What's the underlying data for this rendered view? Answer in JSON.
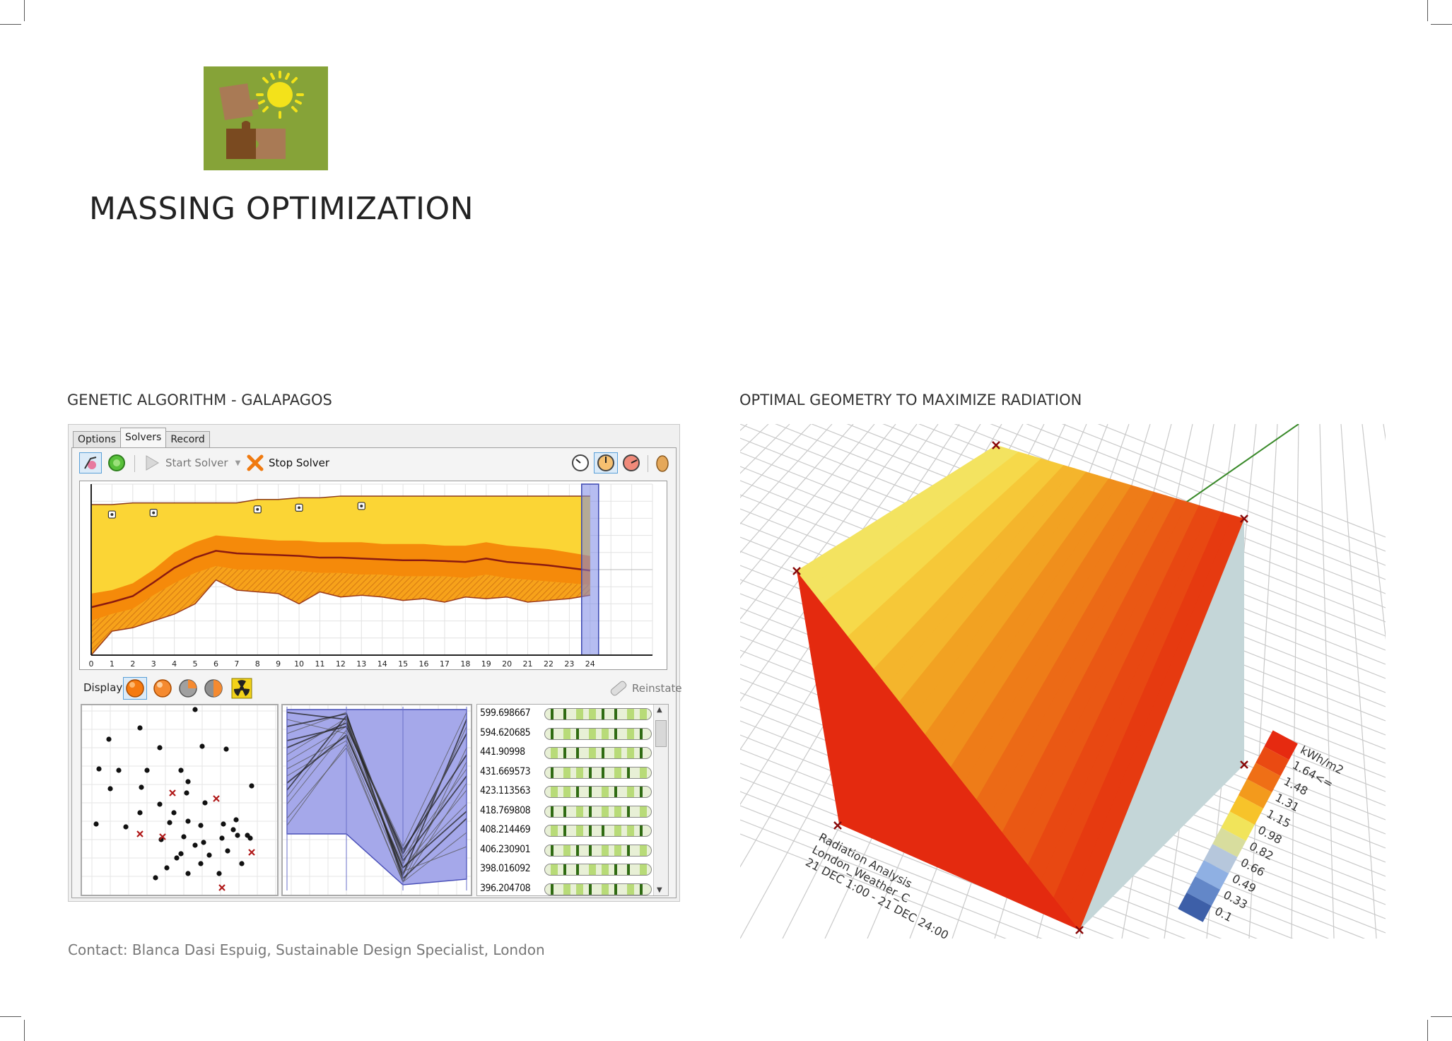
{
  "page": {
    "title": "MASSING OPTIMIZATION",
    "left_section": "GENETIC ALGORITHM - GALAPAGOS",
    "right_section": "OPTIMAL GEOMETRY TO MAXIMIZE RADIATION",
    "contact": "Contact: Blanca Dasi Espuig, Sustainable Design Specialist, London"
  },
  "galapagos": {
    "tabs": [
      {
        "label": "Options",
        "active": false
      },
      {
        "label": "Solvers",
        "active": true
      },
      {
        "label": "Record",
        "active": false
      }
    ],
    "toolbar": {
      "start_label": "Start Solver",
      "stop_label": "Stop Solver",
      "icons": [
        "evolutionary-solver-icon",
        "annealing-solver-icon",
        "play-icon",
        "stop-x-icon",
        "speed-slow-icon",
        "speed-medium-icon",
        "speed-fast-icon",
        "egg-icon"
      ]
    },
    "display": {
      "label": "Display",
      "reinstate_label": "Reinstate",
      "icons": [
        "display-orange-icon",
        "display-orange2-icon",
        "display-gray-icon",
        "display-mixed-icon",
        "radiation-icon"
      ]
    },
    "fitness_values": [
      "599.698667",
      "594.620685",
      "441.90998",
      "431.669573",
      "423.113563",
      "418.769808",
      "408.214469",
      "406.230901",
      "398.016092",
      "396.204708"
    ]
  },
  "chart_data": {
    "type": "area",
    "x": [
      0,
      1,
      2,
      3,
      4,
      5,
      6,
      7,
      8,
      9,
      10,
      11,
      12,
      13,
      14,
      15,
      16,
      17,
      18,
      19,
      20,
      21,
      22,
      23,
      24
    ],
    "tick_labels": [
      "0",
      "1",
      "2",
      "3",
      "4",
      "5",
      "6",
      "7",
      "8",
      "9",
      "10",
      "11",
      "12",
      "13",
      "14",
      "15",
      "16",
      "17",
      "18",
      "19",
      "20",
      "21",
      "22",
      "23",
      "24"
    ],
    "ylim": [
      0,
      100
    ],
    "grid": true,
    "series": [
      {
        "values": [
          88,
          88,
          89,
          89,
          89,
          89,
          89,
          89,
          91,
          91,
          92,
          92,
          93,
          93,
          93,
          93,
          93,
          93,
          93,
          93,
          93,
          93,
          93,
          93,
          93
        ]
      },
      {
        "values": [
          36,
          38,
          42,
          50,
          60,
          66,
          70,
          69,
          68,
          67,
          67,
          66,
          66,
          66,
          65,
          65,
          65,
          64,
          64,
          66,
          64,
          63,
          62,
          60,
          58
        ]
      },
      {
        "values": [
          20,
          24,
          27,
          35,
          42,
          48,
          52,
          50,
          50,
          50,
          49,
          48,
          48,
          47,
          47,
          46,
          46,
          46,
          45,
          47,
          45,
          44,
          43,
          42,
          41
        ]
      },
      {
        "values": [
          0,
          14,
          16,
          20,
          24,
          30,
          44,
          38,
          37,
          36,
          30,
          37,
          34,
          35,
          34,
          32,
          33,
          31,
          34,
          33,
          34,
          31,
          32,
          33,
          35
        ]
      }
    ],
    "markers": [
      1,
      3,
      8,
      10,
      13
    ],
    "selected_generation": 24
  },
  "radiation": {
    "legend_title": "kWh/m2",
    "legend_values": [
      "1.64<=",
      "1.48",
      "1.31",
      "1.15",
      "0.98",
      "0.82",
      "0.66",
      "0.49",
      "0.33",
      "0.1"
    ],
    "legend_colors": [
      "#e62a10",
      "#ea4a12",
      "#ef6f16",
      "#f39a1c",
      "#f7c32a",
      "#f1e45a",
      "#d8dd9e",
      "#b6c7dc",
      "#8fb0e3",
      "#6387c8",
      "#3d5fa8"
    ],
    "caption_lines": [
      "Radiation Analysis",
      "London_Weather_C",
      "21 DEC 1:00 - 21 DEC 24:00"
    ]
  }
}
